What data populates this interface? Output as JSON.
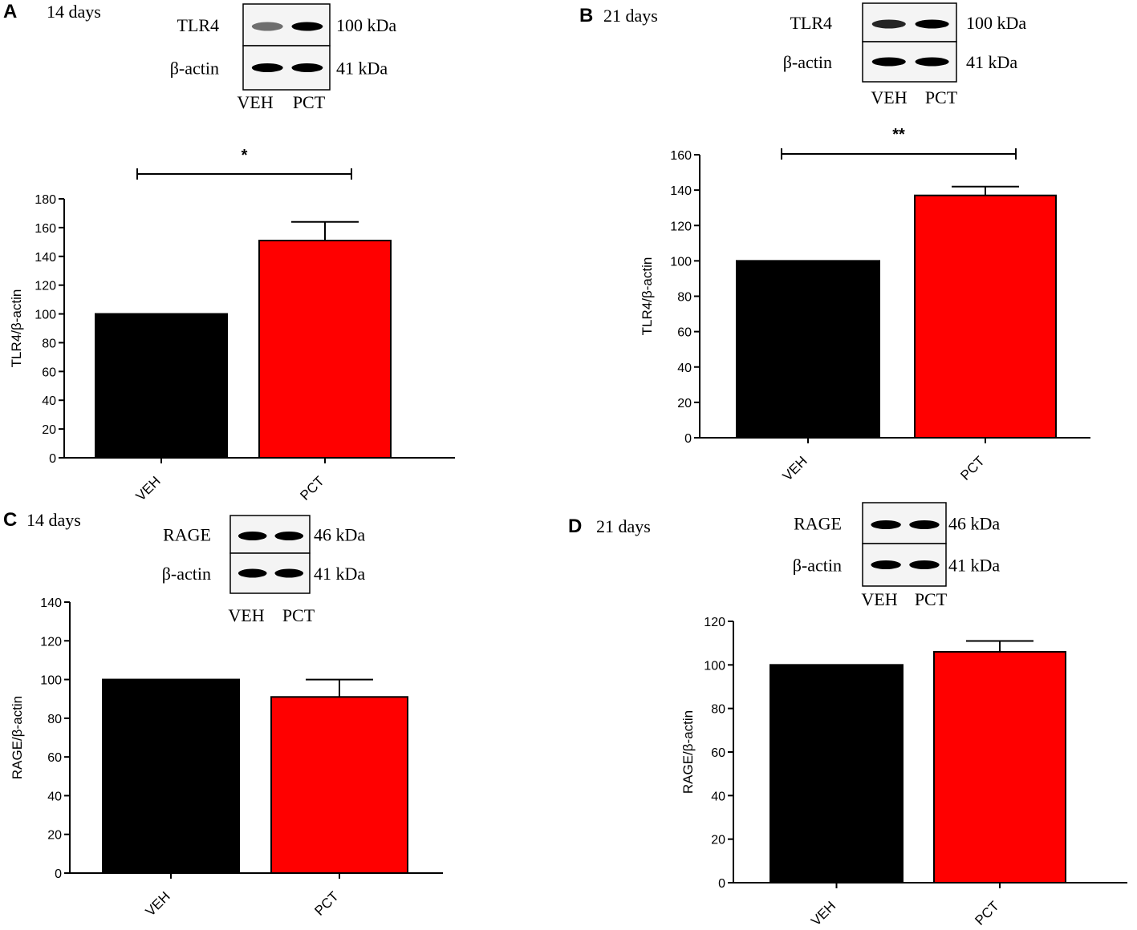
{
  "chart_data": [
    {
      "panel": "A",
      "type": "bar",
      "title": "14 days",
      "blot": {
        "rows": [
          {
            "label": "TLR4",
            "size": "100 kDa"
          },
          {
            "label": "β-actin",
            "size": "41 kDa"
          }
        ],
        "lanes": [
          "VEH",
          "PCT"
        ]
      },
      "categories": [
        "VEH",
        "PCT"
      ],
      "values": [
        100,
        151
      ],
      "errors": [
        0,
        13
      ],
      "colors": [
        "#000000",
        "#ff0000"
      ],
      "ylabel": "TLR4/β-actin",
      "xlabel": "",
      "ylim": [
        0,
        180
      ],
      "yticks": [
        0,
        20,
        40,
        60,
        80,
        100,
        120,
        140,
        160,
        180
      ],
      "significance": "*"
    },
    {
      "panel": "B",
      "type": "bar",
      "title": "21 days",
      "blot": {
        "rows": [
          {
            "label": "TLR4",
            "size": "100 kDa"
          },
          {
            "label": "β-actin",
            "size": "41 kDa"
          }
        ],
        "lanes": [
          "VEH",
          "PCT"
        ]
      },
      "categories": [
        "VEH",
        "PCT"
      ],
      "values": [
        100,
        137
      ],
      "errors": [
        0,
        5
      ],
      "colors": [
        "#000000",
        "#ff0000"
      ],
      "ylabel": "TLR4/β-actin",
      "xlabel": "",
      "ylim": [
        0,
        160
      ],
      "yticks": [
        0,
        20,
        40,
        60,
        80,
        100,
        120,
        140,
        160
      ],
      "significance": "**"
    },
    {
      "panel": "C",
      "type": "bar",
      "title": "14 days",
      "blot": {
        "rows": [
          {
            "label": "RAGE",
            "size": "46 kDa"
          },
          {
            "label": "β-actin",
            "size": "41 kDa"
          }
        ],
        "lanes": [
          "VEH",
          "PCT"
        ]
      },
      "categories": [
        "VEH",
        "PCT"
      ],
      "values": [
        100,
        91
      ],
      "errors": [
        0,
        9
      ],
      "colors": [
        "#000000",
        "#ff0000"
      ],
      "ylabel": "RAGE/β-actin",
      "xlabel": "",
      "ylim": [
        0,
        140
      ],
      "yticks": [
        0,
        20,
        40,
        60,
        80,
        100,
        120,
        140
      ],
      "significance": ""
    },
    {
      "panel": "D",
      "type": "bar",
      "title": "21 days",
      "blot": {
        "rows": [
          {
            "label": "RAGE",
            "size": "46 kDa"
          },
          {
            "label": "β-actin",
            "size": "41 kDa"
          }
        ],
        "lanes": [
          "VEH",
          "PCT"
        ]
      },
      "categories": [
        "VEH",
        "PCT"
      ],
      "values": [
        100,
        106
      ],
      "errors": [
        0,
        5
      ],
      "colors": [
        "#000000",
        "#ff0000"
      ],
      "ylabel": "RAGE/β-actin",
      "xlabel": "",
      "ylim": [
        0,
        120
      ],
      "yticks": [
        0,
        20,
        40,
        60,
        80,
        100,
        120
      ],
      "significance": ""
    }
  ]
}
